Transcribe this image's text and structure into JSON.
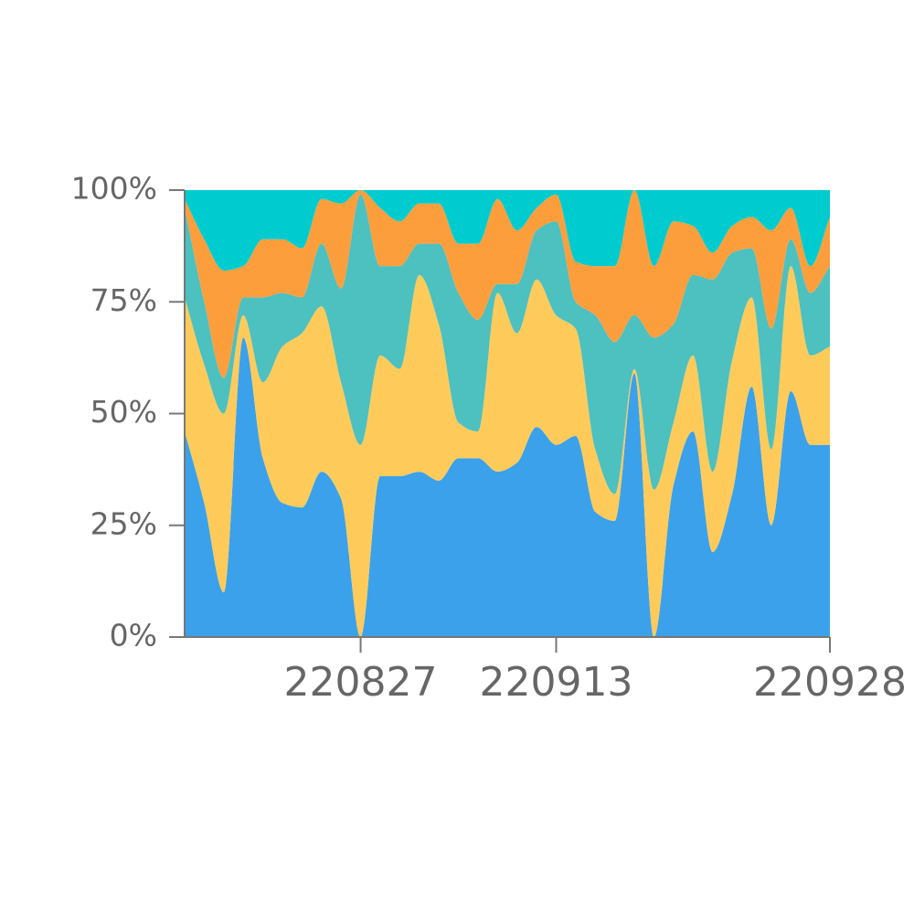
{
  "chart_data": {
    "type": "stacked-area-percent",
    "categories": [
      null,
      null,
      null,
      null,
      null,
      null,
      null,
      null,
      null,
      "220827",
      null,
      null,
      null,
      null,
      null,
      null,
      null,
      null,
      null,
      "220913",
      null,
      null,
      null,
      null,
      null,
      null,
      null,
      null,
      null,
      null,
      null,
      null,
      null,
      "220928"
    ],
    "series": [
      {
        "color": "#3ba1ea",
        "values": [
          46,
          30,
          10,
          67,
          40,
          30,
          29,
          37,
          31,
          0,
          36,
          36,
          37,
          35,
          40,
          40,
          37,
          39,
          47,
          43,
          45,
          28,
          26,
          59,
          0,
          34,
          46,
          19,
          32,
          56,
          25,
          55,
          43,
          43
        ]
      },
      {
        "color": "#fecb5b",
        "values": [
          30,
          31,
          40,
          5,
          17,
          35,
          39,
          37,
          26,
          43,
          27,
          24,
          44,
          35,
          8,
          6,
          40,
          29,
          33,
          29,
          24,
          14,
          6,
          1,
          33,
          14,
          17,
          18,
          30,
          20,
          17,
          28,
          20,
          22
        ]
      },
      {
        "color": "#4dc0c0",
        "values": [
          20,
          14,
          8,
          4,
          19,
          12,
          8,
          14,
          21,
          56,
          20,
          23,
          7,
          18,
          29,
          25,
          2,
          11,
          11,
          21,
          6,
          30,
          34,
          12,
          34,
          22,
          18,
          43,
          24,
          11,
          27,
          6,
          14,
          18
        ]
      },
      {
        "color": "#fd9e3d",
        "values": [
          2,
          14,
          24,
          7,
          13,
          12,
          11,
          10,
          19,
          1,
          13,
          10,
          9,
          9,
          11,
          17,
          19,
          12,
          5,
          6,
          9,
          11,
          17,
          28,
          16,
          23,
          11,
          6,
          6,
          7,
          22,
          7,
          6,
          11
        ]
      },
      {
        "color": "#00ccd0",
        "values": [
          2,
          11,
          18,
          17,
          11,
          11,
          13,
          2,
          3,
          0,
          4,
          7,
          3,
          3,
          12,
          12,
          2,
          9,
          4,
          1,
          16,
          17,
          17,
          0,
          17,
          7,
          8,
          14,
          8,
          6,
          9,
          4,
          17,
          6
        ]
      }
    ],
    "ylim": [
      0,
      100
    ],
    "yticks": [
      {
        "value": 0,
        "label": "0%"
      },
      {
        "value": 25,
        "label": "25%"
      },
      {
        "value": 50,
        "label": "50%"
      },
      {
        "value": 75,
        "label": "75%"
      },
      {
        "value": 100,
        "label": "100%"
      }
    ]
  }
}
